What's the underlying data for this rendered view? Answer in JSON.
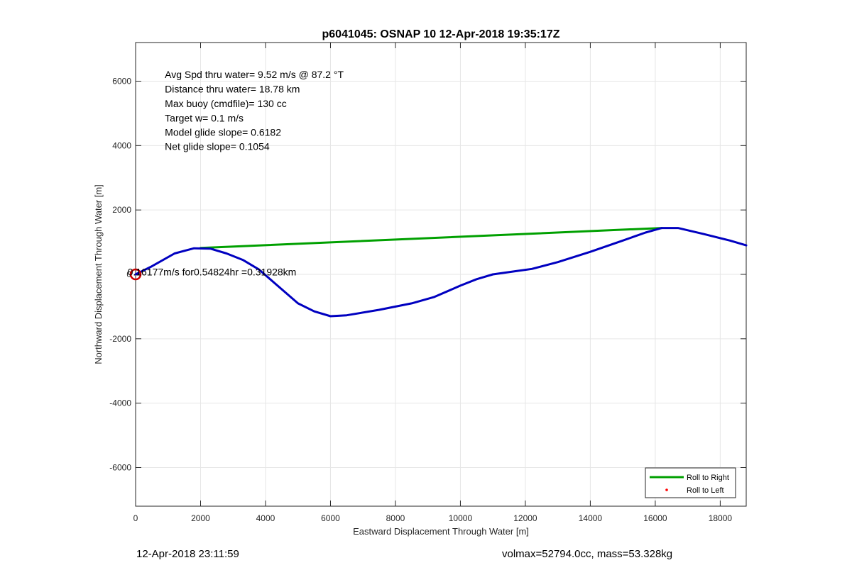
{
  "chart_data": {
    "type": "line",
    "title": "p6041045: OSNAP 10 12-Apr-2018 19:35:17Z",
    "xlabel": "Eastward Displacement Through Water [m]",
    "ylabel": "Northward Displacement Through Water [m]",
    "xlim": [
      0,
      18800
    ],
    "ylim": [
      -7200,
      7200
    ],
    "xticks": [
      0,
      2000,
      4000,
      6000,
      8000,
      10000,
      12000,
      14000,
      16000,
      18000
    ],
    "yticks": [
      -6000,
      -4000,
      -2000,
      0,
      2000,
      4000,
      6000
    ],
    "grid": true,
    "legend_position": "bottom-right",
    "legend": [
      {
        "label": "Roll to Right",
        "color": "#00a000",
        "marker": "line"
      },
      {
        "label": "Roll to Left",
        "color": "#ff0000",
        "marker": "dot"
      }
    ],
    "series": [
      {
        "name": "Roll to Right",
        "color": "#00a000",
        "points": [
          [
            2000,
            820
          ],
          [
            16200,
            1440
          ]
        ]
      },
      {
        "color": "#0000c0",
        "points": [
          [
            0,
            0
          ],
          [
            500,
            250
          ],
          [
            1200,
            650
          ],
          [
            1800,
            810
          ],
          [
            2300,
            800
          ],
          [
            2800,
            650
          ],
          [
            3300,
            450
          ],
          [
            3800,
            150
          ],
          [
            4200,
            -200
          ],
          [
            4600,
            -550
          ],
          [
            5000,
            -900
          ],
          [
            5500,
            -1150
          ],
          [
            6000,
            -1300
          ],
          [
            6500,
            -1270
          ],
          [
            7500,
            -1100
          ],
          [
            8500,
            -900
          ],
          [
            9200,
            -700
          ],
          [
            10000,
            -350
          ],
          [
            10500,
            -150
          ],
          [
            11000,
            0
          ],
          [
            11700,
            100
          ],
          [
            12200,
            170
          ],
          [
            13000,
            380
          ],
          [
            14000,
            700
          ],
          [
            15000,
            1050
          ],
          [
            15700,
            1300
          ],
          [
            16200,
            1440
          ],
          [
            16700,
            1440
          ],
          [
            17500,
            1250
          ],
          [
            18300,
            1050
          ],
          [
            18800,
            900
          ]
        ]
      }
    ],
    "start_marker": {
      "x": 0,
      "y": 0,
      "color": "#cc0000"
    },
    "annotations": [
      {
        "text": "Avg Spd thru water=  9.52 m/s @  87.2 °T",
        "x": 900,
        "y": 6100
      },
      {
        "text": "Distance thru water= 18.78 km",
        "x": 900,
        "y": 5650
      },
      {
        "text": "Max buoy (cmdfile)= 130 cc",
        "x": 900,
        "y": 5200
      },
      {
        "text": "Target w= 0.1 m/s",
        "x": 900,
        "y": 4750
      },
      {
        "text": "Model glide slope= 0.6182",
        "x": 900,
        "y": 4300
      },
      {
        "text": "Net glide slope= 0.1054",
        "x": 900,
        "y": 3860
      },
      {
        "text": "0.16177m/s for0.54824hr =0.31928km",
        "x": -250,
        "y": -30
      }
    ]
  },
  "footer": {
    "timestamp": "12-Apr-2018 23:11:59",
    "summary": "volmax=52794.0cc, mass=53.328kg"
  }
}
